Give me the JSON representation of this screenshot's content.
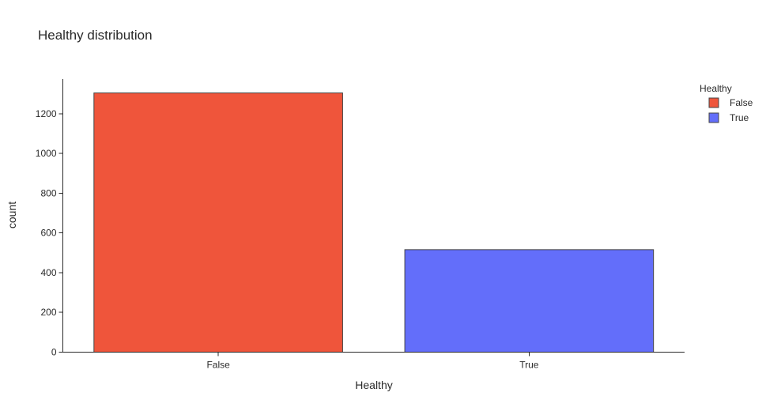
{
  "chart_data": {
    "type": "bar",
    "title": "Healthy distribution",
    "xlabel": "Healthy",
    "ylabel": "count",
    "categories": [
      "False",
      "True"
    ],
    "values": [
      1305,
      516
    ],
    "ylim": [
      0,
      1375
    ],
    "yticks": [
      0,
      200,
      400,
      600,
      800,
      1000,
      1200
    ],
    "grid": false,
    "legend": {
      "title": "Healthy",
      "placement": "top-right",
      "items": [
        {
          "label": "False",
          "color": "#EF553B"
        },
        {
          "label": "True",
          "color": "#636EFA"
        }
      ]
    },
    "colors": [
      "#EF553B",
      "#636EFA"
    ]
  }
}
